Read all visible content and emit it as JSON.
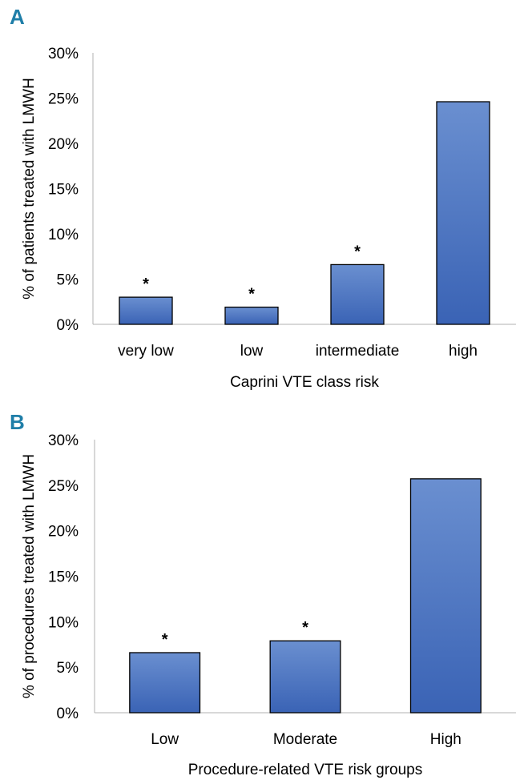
{
  "panels": {
    "a": {
      "label": "A"
    },
    "b": {
      "label": "B"
    }
  },
  "colors": {
    "bar_top": "#6a8fd0",
    "bar_bottom": "#3a63b5",
    "bar_stroke": "#000000",
    "panel_label": "#1f7ea8"
  },
  "chart_data": [
    {
      "type": "bar",
      "title": "",
      "categories": [
        "very low",
        "low",
        "intermediate",
        "high"
      ],
      "values": [
        3.0,
        1.9,
        6.6,
        24.6
      ],
      "significance": [
        "*",
        "*",
        "*",
        ""
      ],
      "xlabel": "Caprini VTE class risk",
      "ylabel": "% of patients treated with LMWH",
      "ylim": [
        0,
        30
      ],
      "yticks": [
        "0%",
        "5%",
        "10%",
        "15%",
        "20%",
        "25%",
        "30%"
      ],
      "grid": false
    },
    {
      "type": "bar",
      "title": "",
      "categories": [
        "Low",
        "Moderate",
        "High"
      ],
      "values": [
        6.6,
        7.9,
        25.7
      ],
      "significance": [
        "*",
        "*",
        ""
      ],
      "xlabel": "Procedure-related VTE risk groups",
      "ylabel": "% of procedures treated with LMWH",
      "ylim": [
        0,
        30
      ],
      "yticks": [
        "0%",
        "5%",
        "10%",
        "15%",
        "20%",
        "25%",
        "30%"
      ],
      "grid": false
    }
  ]
}
